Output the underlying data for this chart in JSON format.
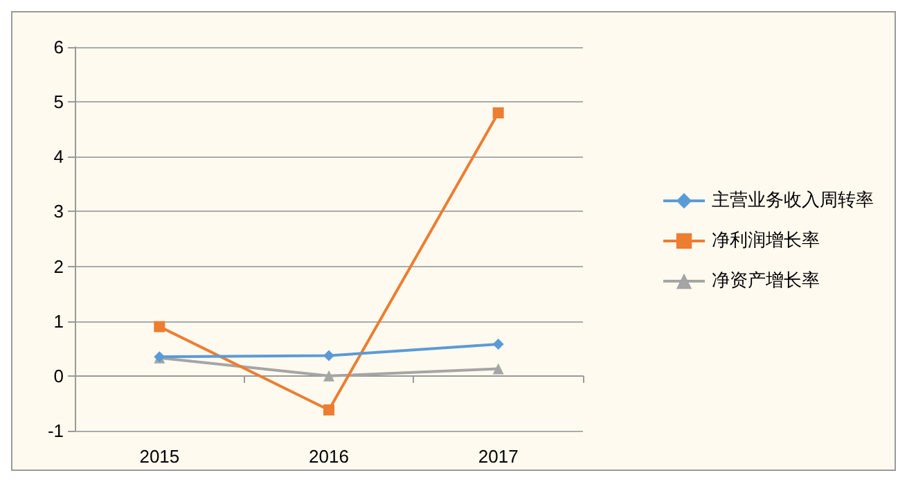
{
  "chart_data": {
    "type": "line",
    "categories": [
      "2015",
      "2016",
      "2017"
    ],
    "series": [
      {
        "name": "主营业务收入周转率",
        "color": "#5b9bd5",
        "marker": "diamond",
        "values": [
          0.35,
          0.37,
          0.58
        ]
      },
      {
        "name": "净利润增长率",
        "color": "#ed7d31",
        "marker": "square",
        "values": [
          0.9,
          -0.62,
          4.8
        ]
      },
      {
        "name": "净资产增长率",
        "color": "#a5a5a5",
        "marker": "triangle",
        "values": [
          0.33,
          0,
          0.13
        ]
      }
    ],
    "ylim": [
      -1,
      6
    ],
    "yticks": [
      -1,
      0,
      1,
      2,
      3,
      4,
      5,
      6
    ],
    "grid": "y",
    "legend": "right"
  }
}
